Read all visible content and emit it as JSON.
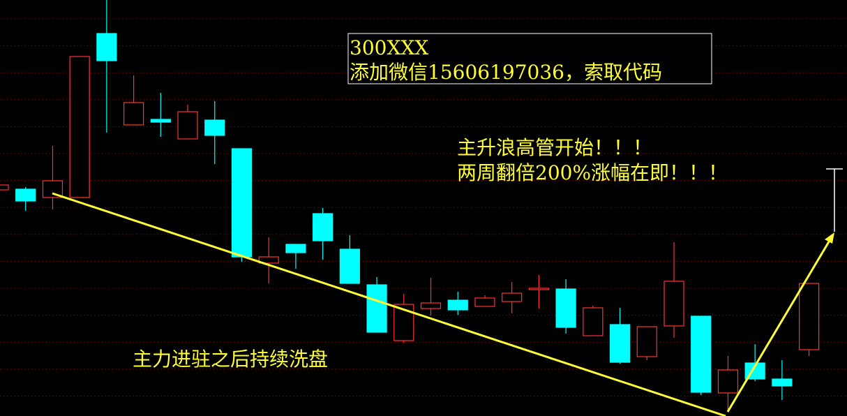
{
  "chart_data": {
    "type": "candlestick",
    "up_color": "#ff3232",
    "down_color": "#00ffff",
    "ylim": [
      0,
      59.6
    ],
    "open": [
      32.4,
      32.5,
      31.3,
      31.3,
      54.8,
      41.7,
      42.5,
      39.7,
      42.4,
      38.3,
      21.9,
      24.6,
      29.0,
      23.9,
      18.8,
      10.8,
      15.4,
      16.6,
      15.7,
      16.4,
      18.1,
      18.2,
      11.5,
      13.1,
      8.5,
      12.9,
      14.3,
      3.3,
      7.6,
      5.3,
      9.5
    ],
    "high": [
      33.1,
      32.8,
      38.7,
      51.5,
      59.6,
      48.8,
      46.3,
      44.6,
      45.1,
      38.3,
      25.6,
      24.6,
      29.8,
      25.9,
      19.9,
      17.5,
      19.8,
      17.8,
      17.3,
      19.2,
      20.2,
      19.6,
      15.8,
      15.5,
      12.8,
      24.9,
      14.3,
      8.6,
      10.3,
      8.0,
      19.0
    ],
    "low": [
      32.4,
      29.4,
      29.6,
      31.3,
      40.6,
      41.7,
      40.0,
      39.7,
      36.1,
      22.1,
      19.0,
      21.1,
      22.4,
      19.0,
      12.0,
      10.5,
      14.4,
      14.5,
      15.7,
      14.7,
      15.4,
      11.8,
      11.5,
      7.5,
      8.0,
      11.2,
      3.0,
      0.6,
      5.0,
      2.3,
      8.6
    ],
    "close": [
      33.1,
      30.8,
      33.7,
      51.5,
      50.9,
      44.9,
      42.1,
      43.6,
      40.2,
      22.8,
      22.8,
      23.4,
      25.1,
      19.0,
      12.0,
      16.0,
      16.2,
      15.2,
      16.9,
      17.6,
      18.3,
      12.7,
      15.5,
      7.7,
      12.8,
      19.3,
      3.4,
      6.6,
      5.3,
      4.3,
      19.0
    ],
    "annotations": [
      "300XXX",
      "添加微信15606197036，索取代码",
      "主升浪高管开始！！！",
      "两周翻倍200%涨幅在即！！！",
      "主力进驻之后持续洗盘"
    ]
  }
}
